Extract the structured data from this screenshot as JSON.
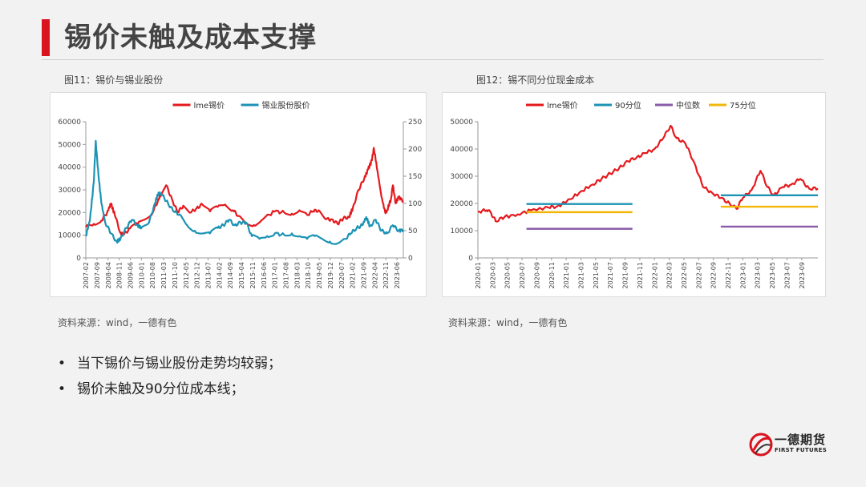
{
  "page": {
    "title": "锡价未触及成本支撑"
  },
  "figures": [
    {
      "caption": "图11：锡价与锡业股份",
      "source": "资料来源：wind，一德有色"
    },
    {
      "caption": "图12：锡不同分位现金成本",
      "source": "资料来源：wind，一德有色"
    }
  ],
  "bullets": [
    "当下锡价与锡业股份走势均较弱；",
    "锡价未触及90分位成本线；"
  ],
  "logo": {
    "name": "一德期货",
    "sub": "FIRST FUTURES"
  },
  "colors": {
    "accent": "#d9141f",
    "teal": "#1c93b4",
    "purple": "#8a5ba8",
    "yellow": "#f2b705"
  },
  "chart_data": [
    {
      "type": "line",
      "legend_position": "top",
      "grid": false,
      "x_ticks": [
        "2007-02",
        "2007-09",
        "2008-04",
        "2008-11",
        "2009-06",
        "2010-01",
        "2010-08",
        "2011-03",
        "2011-10",
        "2012-05",
        "2012-12",
        "2013-07",
        "2014-02",
        "2014-09",
        "2015-04",
        "2015-11",
        "2016-06",
        "2017-01",
        "2017-08",
        "2018-03",
        "2018-10",
        "2019-05",
        "2019-12",
        "2020-07",
        "2021-02",
        "2021-09",
        "2022-04",
        "2022-11",
        "2023-06"
      ],
      "x_range": [
        2007.08,
        2023.75
      ],
      "y_left": {
        "ticks": [
          0,
          10000,
          20000,
          30000,
          40000,
          50000,
          60000
        ],
        "range": [
          0,
          60000
        ]
      },
      "y_right": {
        "ticks": [
          0,
          50,
          100,
          150,
          200,
          250
        ],
        "range": [
          0,
          250
        ]
      },
      "series": [
        {
          "name": "lme锡价",
          "axis": "left",
          "color": "#e5191d",
          "points": [
            [
              2007.08,
              13500
            ],
            [
              2007.5,
              15000
            ],
            [
              2007.9,
              16500
            ],
            [
              2008.2,
              20000
            ],
            [
              2008.4,
              24000
            ],
            [
              2008.6,
              19000
            ],
            [
              2008.9,
              11000
            ],
            [
              2009.1,
              10500
            ],
            [
              2009.4,
              13000
            ],
            [
              2009.8,
              15000
            ],
            [
              2010.2,
              17000
            ],
            [
              2010.6,
              20000
            ],
            [
              2010.9,
              26000
            ],
            [
              2011.1,
              29000
            ],
            [
              2011.3,
              32000
            ],
            [
              2011.6,
              26000
            ],
            [
              2011.9,
              20000
            ],
            [
              2012.2,
              23000
            ],
            [
              2012.6,
              20000
            ],
            [
              2012.9,
              22000
            ],
            [
              2013.2,
              23500
            ],
            [
              2013.6,
              20500
            ],
            [
              2014.0,
              22500
            ],
            [
              2014.4,
              23500
            ],
            [
              2014.8,
              21000
            ],
            [
              2015.1,
              18500
            ],
            [
              2015.5,
              15500
            ],
            [
              2015.9,
              14500
            ],
            [
              2016.3,
              16500
            ],
            [
              2016.7,
              19000
            ],
            [
              2017.0,
              20500
            ],
            [
              2017.5,
              20000
            ],
            [
              2017.9,
              19500
            ],
            [
              2018.3,
              21000
            ],
            [
              2018.7,
              19000
            ],
            [
              2019.0,
              20500
            ],
            [
              2019.3,
              21000
            ],
            [
              2019.7,
              17000
            ],
            [
              2020.0,
              17000
            ],
            [
              2020.3,
              15000
            ],
            [
              2020.6,
              17500
            ],
            [
              2020.9,
              18000
            ],
            [
              2021.1,
              22000
            ],
            [
              2021.4,
              30000
            ],
            [
              2021.7,
              35000
            ],
            [
              2021.9,
              39000
            ],
            [
              2022.1,
              43000
            ],
            [
              2022.2,
              48500
            ],
            [
              2022.4,
              38000
            ],
            [
              2022.6,
              27000
            ],
            [
              2022.8,
              20000
            ],
            [
              2022.9,
              21000
            ],
            [
              2023.1,
              26000
            ],
            [
              2023.2,
              32000
            ],
            [
              2023.35,
              24000
            ],
            [
              2023.5,
              27000
            ],
            [
              2023.75,
              25000
            ]
          ]
        },
        {
          "name": "锡业股份股价",
          "axis": "right",
          "color": "#1c93b4",
          "points": [
            [
              2007.08,
              40
            ],
            [
              2007.3,
              70
            ],
            [
              2007.5,
              140
            ],
            [
              2007.6,
              215
            ],
            [
              2007.75,
              150
            ],
            [
              2007.9,
              100
            ],
            [
              2008.1,
              65
            ],
            [
              2008.4,
              45
            ],
            [
              2008.7,
              30
            ],
            [
              2008.9,
              35
            ],
            [
              2009.2,
              55
            ],
            [
              2009.5,
              70
            ],
            [
              2009.8,
              60
            ],
            [
              2010.0,
              55
            ],
            [
              2010.4,
              65
            ],
            [
              2010.7,
              100
            ],
            [
              2010.9,
              120
            ],
            [
              2011.1,
              115
            ],
            [
              2011.4,
              100
            ],
            [
              2011.7,
              85
            ],
            [
              2012.0,
              80
            ],
            [
              2012.4,
              60
            ],
            [
              2012.8,
              50
            ],
            [
              2013.2,
              45
            ],
            [
              2013.6,
              45
            ],
            [
              2014.0,
              55
            ],
            [
              2014.3,
              60
            ],
            [
              2014.6,
              70
            ],
            [
              2014.9,
              60
            ],
            [
              2015.2,
              65
            ],
            [
              2015.5,
              65
            ],
            [
              2015.8,
              40
            ],
            [
              2016.2,
              35
            ],
            [
              2016.6,
              40
            ],
            [
              2017.0,
              45
            ],
            [
              2017.5,
              42
            ],
            [
              2017.9,
              45
            ],
            [
              2018.3,
              40
            ],
            [
              2018.7,
              35
            ],
            [
              2019.1,
              40
            ],
            [
              2019.5,
              35
            ],
            [
              2019.9,
              30
            ],
            [
              2020.3,
              27
            ],
            [
              2020.7,
              35
            ],
            [
              2021.0,
              45
            ],
            [
              2021.3,
              55
            ],
            [
              2021.6,
              60
            ],
            [
              2021.8,
              75
            ],
            [
              2022.0,
              58
            ],
            [
              2022.3,
              70
            ],
            [
              2022.6,
              50
            ],
            [
              2022.9,
              45
            ],
            [
              2023.2,
              60
            ],
            [
              2023.5,
              50
            ],
            [
              2023.75,
              52
            ]
          ]
        }
      ]
    },
    {
      "type": "line",
      "legend_position": "top",
      "grid": false,
      "x_ticks": [
        "2020-01",
        "2020-03",
        "2020-05",
        "2020-07",
        "2020-09",
        "2020-11",
        "2021-01",
        "2021-03",
        "2021-05",
        "2021-07",
        "2021-09",
        "2021-11",
        "2022-01",
        "2022-03",
        "2022-05",
        "2022-07",
        "2022-09",
        "2022-11",
        "2023-01",
        "2023-03",
        "2023-05",
        "2023-07",
        "2023-09"
      ],
      "x_range": [
        2020.0,
        2023.85
      ],
      "y_left": {
        "ticks": [
          0,
          10000,
          20000,
          30000,
          40000,
          50000
        ],
        "range": [
          0,
          50000
        ]
      },
      "series": [
        {
          "name": "lme锡价",
          "color": "#e5191d",
          "points": [
            [
              2020.0,
              17000
            ],
            [
              2020.1,
              17500
            ],
            [
              2020.15,
              16500
            ],
            [
              2020.2,
              13500
            ],
            [
              2020.3,
              15000
            ],
            [
              2020.45,
              16000
            ],
            [
              2020.6,
              17500
            ],
            [
              2020.8,
              18500
            ],
            [
              2020.9,
              19000
            ],
            [
              2021.0,
              20500
            ],
            [
              2021.15,
              24000
            ],
            [
              2021.3,
              27000
            ],
            [
              2021.4,
              29000
            ],
            [
              2021.5,
              31000
            ],
            [
              2021.6,
              33000
            ],
            [
              2021.7,
              35500
            ],
            [
              2021.8,
              37000
            ],
            [
              2021.9,
              38500
            ],
            [
              2022.0,
              40000
            ],
            [
              2022.1,
              44000
            ],
            [
              2022.18,
              48500
            ],
            [
              2022.25,
              44000
            ],
            [
              2022.35,
              42000
            ],
            [
              2022.45,
              35000
            ],
            [
              2022.55,
              26000
            ],
            [
              2022.65,
              24000
            ],
            [
              2022.75,
              22000
            ],
            [
              2022.85,
              20000
            ],
            [
              2022.93,
              18000
            ],
            [
              2023.0,
              22000
            ],
            [
              2023.1,
              25000
            ],
            [
              2023.2,
              32000
            ],
            [
              2023.28,
              26000
            ],
            [
              2023.35,
              23000
            ],
            [
              2023.45,
              26000
            ],
            [
              2023.55,
              27000
            ],
            [
              2023.65,
              29000
            ],
            [
              2023.75,
              25500
            ],
            [
              2023.85,
              25500
            ]
          ]
        },
        {
          "name": "90分位",
          "color": "#1c93b4",
          "segments": [
            [
              [
                2020.55,
                19800
              ],
              [
                2021.75,
                19800
              ]
            ],
            [
              [
                2022.75,
                23000
              ],
              [
                2023.85,
                23000
              ]
            ]
          ]
        },
        {
          "name": "中位数",
          "color": "#8a5ba8",
          "segments": [
            [
              [
                2020.55,
                10700
              ],
              [
                2021.75,
                10700
              ]
            ],
            [
              [
                2022.75,
                11500
              ],
              [
                2023.85,
                11500
              ]
            ]
          ]
        },
        {
          "name": "75分位",
          "color": "#f2b705",
          "segments": [
            [
              [
                2020.55,
                16800
              ],
              [
                2021.75,
                16800
              ]
            ],
            [
              [
                2022.75,
                18800
              ],
              [
                2023.85,
                18800
              ]
            ]
          ]
        }
      ]
    }
  ]
}
